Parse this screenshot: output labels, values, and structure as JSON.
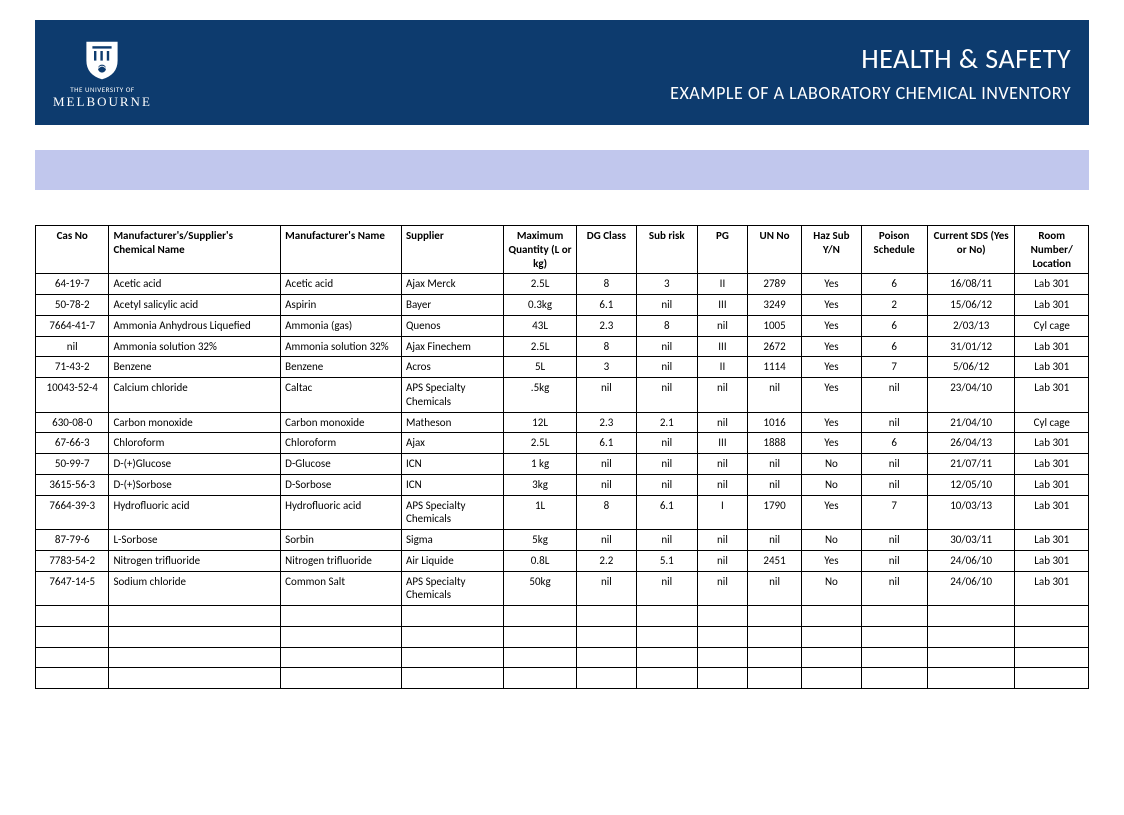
{
  "header": {
    "university_small": "THE UNIVERSITY OF",
    "university_big": "MELBOURNE",
    "title_main": "HEALTH & SAFETY",
    "title_sub": "EXAMPLE OF A LABORATORY CHEMICAL INVENTORY"
  },
  "colors": {
    "header_bg": "#0d3b6e",
    "subheader_bg": "#c1c7ed",
    "text": "#000000",
    "header_text": "#ffffff",
    "border": "#000000"
  },
  "table": {
    "columns": [
      {
        "key": "cas",
        "label": "Cas No",
        "class": "col-cas",
        "align": "center"
      },
      {
        "key": "name",
        "label": "Manufacturer's/Supplier's Chemical Name",
        "class": "col-name",
        "align": "left"
      },
      {
        "key": "mfg",
        "label": "Manufacturer's Name",
        "class": "col-mfg",
        "align": "left"
      },
      {
        "key": "supp",
        "label": "Supplier",
        "class": "col-supp",
        "align": "left"
      },
      {
        "key": "qty",
        "label": "Maximum Quantity (L or kg)",
        "class": "col-qty",
        "align": "center"
      },
      {
        "key": "dg",
        "label": "DG Class",
        "class": "col-dg",
        "align": "center"
      },
      {
        "key": "sub",
        "label": "Sub risk",
        "class": "col-sub",
        "align": "center"
      },
      {
        "key": "pg",
        "label": "PG",
        "class": "col-pg",
        "align": "center"
      },
      {
        "key": "un",
        "label": "UN No",
        "class": "col-un",
        "align": "center"
      },
      {
        "key": "haz",
        "label": "Haz Sub Y/N",
        "class": "col-haz",
        "align": "center"
      },
      {
        "key": "poi",
        "label": "Poison Schedule",
        "class": "col-poi",
        "align": "center"
      },
      {
        "key": "sds",
        "label": "Current SDS (Yes or No)",
        "class": "col-sds",
        "align": "center"
      },
      {
        "key": "room",
        "label": "Room Number/ Location",
        "class": "col-room",
        "align": "center"
      }
    ],
    "rows": [
      {
        "cas": "64-19-7",
        "name": "Acetic acid",
        "mfg": "Acetic acid",
        "supp": "Ajax Merck",
        "qty": "2.5L",
        "dg": "8",
        "sub": "3",
        "pg": "II",
        "un": "2789",
        "haz": "Yes",
        "poi": "6",
        "sds": "16/08/11",
        "room": "Lab 301"
      },
      {
        "cas": "50-78-2",
        "name": "Acetyl salicylic acid",
        "mfg": "Aspirin",
        "supp": "Bayer",
        "qty": "0.3kg",
        "dg": "6.1",
        "sub": "nil",
        "pg": "III",
        "un": "3249",
        "haz": "Yes",
        "poi": "2",
        "sds": "15/06/12",
        "room": "Lab 301"
      },
      {
        "cas": "7664-41-7",
        "name": "Ammonia Anhydrous Liquefied",
        "mfg": "Ammonia (gas)",
        "supp": "Quenos",
        "qty": "43L",
        "dg": "2.3",
        "sub": "8",
        "pg": "nil",
        "un": "1005",
        "haz": "Yes",
        "poi": "6",
        "sds": "2/03/13",
        "room": "Cyl cage"
      },
      {
        "cas": "nil",
        "name": "Ammonia solution 32%",
        "mfg": "Ammonia solution 32%",
        "supp": "Ajax Finechem",
        "qty": "2.5L",
        "dg": "8",
        "sub": "nil",
        "pg": "III",
        "un": "2672",
        "haz": "Yes",
        "poi": "6",
        "sds": "31/01/12",
        "room": "Lab 301"
      },
      {
        "cas": "71-43-2",
        "name": "Benzene",
        "mfg": "Benzene",
        "supp": "Acros",
        "qty": "5L",
        "dg": "3",
        "sub": "nil",
        "pg": "II",
        "un": "1114",
        "haz": "Yes",
        "poi": "7",
        "sds": "5/06/12",
        "room": "Lab 301"
      },
      {
        "cas": "10043-52-4",
        "name": "Calcium chloride",
        "mfg": "Caltac",
        "supp": "APS Specialty Chemicals",
        "qty": ".5kg",
        "dg": "nil",
        "sub": "nil",
        "pg": "nil",
        "un": "nil",
        "haz": "Yes",
        "poi": "nil",
        "sds": "23/04/10",
        "room": "Lab 301"
      },
      {
        "cas": "630-08-0",
        "name": "Carbon monoxide",
        "mfg": "Carbon monoxide",
        "supp": "Matheson",
        "qty": "12L",
        "dg": "2.3",
        "sub": "2.1",
        "pg": "nil",
        "un": "1016",
        "haz": "Yes",
        "poi": "nil",
        "sds": "21/04/10",
        "room": "Cyl cage"
      },
      {
        "cas": "67-66-3",
        "name": "Chloroform",
        "mfg": "Chloroform",
        "supp": "Ajax",
        "qty": "2.5L",
        "dg": "6.1",
        "sub": "nil",
        "pg": "III",
        "un": "1888",
        "haz": "Yes",
        "poi": "6",
        "sds": "26/04/13",
        "room": "Lab 301"
      },
      {
        "cas": "50-99-7",
        "name": "D-(+)Glucose",
        "mfg": "D-Glucose",
        "supp": "ICN",
        "qty": "1 kg",
        "dg": "nil",
        "sub": "nil",
        "pg": "nil",
        "un": "nil",
        "haz": "No",
        "poi": "nil",
        "sds": "21/07/11",
        "room": "Lab 301"
      },
      {
        "cas": "3615-56-3",
        "name": "D-(+)Sorbose",
        "mfg": "D-Sorbose",
        "supp": "ICN",
        "qty": "3kg",
        "dg": "nil",
        "sub": "nil",
        "pg": "nil",
        "un": "nil",
        "haz": "No",
        "poi": "nil",
        "sds": "12/05/10",
        "room": "Lab 301"
      },
      {
        "cas": "7664-39-3",
        "name": "Hydrofluoric acid",
        "mfg": "Hydrofluoric acid",
        "supp": "APS Specialty Chemicals",
        "qty": "1L",
        "dg": "8",
        "sub": "6.1",
        "pg": "I",
        "un": "1790",
        "haz": "Yes",
        "poi": "7",
        "sds": "10/03/13",
        "room": "Lab 301"
      },
      {
        "cas": "87-79-6",
        "name": "L-Sorbose",
        "mfg": "Sorbin",
        "supp": "Sigma",
        "qty": "5kg",
        "dg": "nil",
        "sub": "nil",
        "pg": "nil",
        "un": "nil",
        "haz": "No",
        "poi": "nil",
        "sds": "30/03/11",
        "room": "Lab 301"
      },
      {
        "cas": "7783-54-2",
        "name": "Nitrogen trifluoride",
        "mfg": "Nitrogen trifluoride",
        "supp": "Air Liquide",
        "qty": "0.8L",
        "dg": "2.2",
        "sub": "5.1",
        "pg": "nil",
        "un": "2451",
        "haz": "Yes",
        "poi": "nil",
        "sds": "24/06/10",
        "room": "Lab 301"
      },
      {
        "cas": "7647-14-5",
        "name": "Sodium chloride",
        "mfg": "Common Salt",
        "supp": "APS Specialty Chemicals",
        "qty": "50kg",
        "dg": "nil",
        "sub": "nil",
        "pg": "nil",
        "un": "nil",
        "haz": "No",
        "poi": "nil",
        "sds": "24/06/10",
        "room": "Lab 301"
      }
    ],
    "empty_rows": 4
  }
}
